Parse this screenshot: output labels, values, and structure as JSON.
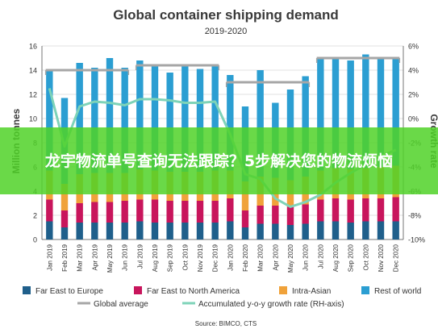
{
  "chart_data": {
    "type": "bar",
    "title": "Global container shipping demand",
    "subtitle": "2019-2020",
    "ylabel": "Million tonnes",
    "y2label": "Growth rate",
    "ylim": [
      0,
      16
    ],
    "y2lim": [
      -10,
      6
    ],
    "yticks": [
      "0",
      "2",
      "4",
      "6",
      "8",
      "10",
      "12",
      "14",
      "16"
    ],
    "y2ticks": [
      "-10%",
      "-8%",
      "-6%",
      "-4%",
      "-2%",
      "0%",
      "2%",
      "4%",
      "6%"
    ],
    "categories": [
      "Jan 2019",
      "Feb 2019",
      "Mar 2019",
      "Apr 2019",
      "May 2019",
      "Jun 2019",
      "Jul 2019",
      "Aug 2019",
      "Sep 2019",
      "Oct 2019",
      "Nov 2019",
      "Dec 2019",
      "Jan 2020",
      "Feb 2020",
      "Mar 2020",
      "Apr 2020",
      "May 2020",
      "Jun 2020",
      "Jul 2020",
      "Aug 2020",
      "Sep 2020",
      "Oct 2020",
      "Nov 2020",
      "Dec 2020"
    ],
    "series": [
      {
        "name": "Far East to Europe",
        "color": "#1f5f8b",
        "values": [
          1.5,
          1.0,
          1.4,
          1.4,
          1.4,
          1.4,
          1.5,
          1.4,
          1.4,
          1.4,
          1.4,
          1.4,
          1.5,
          1.0,
          1.3,
          1.3,
          1.2,
          1.3,
          1.5,
          1.5,
          1.4,
          1.5,
          1.5,
          1.5
        ]
      },
      {
        "name": "Far East to North America",
        "color": "#c8155c",
        "values": [
          1.8,
          1.4,
          1.6,
          1.7,
          1.7,
          1.8,
          1.8,
          1.9,
          1.8,
          1.8,
          1.8,
          1.8,
          1.9,
          1.4,
          1.5,
          1.5,
          1.5,
          1.6,
          1.8,
          1.9,
          1.9,
          1.9,
          1.9,
          2.0
        ]
      },
      {
        "name": "Intra-Asian",
        "color": "#f0a23a",
        "values": [
          2.4,
          2.2,
          2.4,
          2.4,
          2.4,
          2.3,
          2.5,
          2.4,
          2.4,
          2.4,
          2.4,
          2.5,
          2.3,
          2.4,
          2.4,
          2.3,
          2.2,
          2.3,
          2.4,
          2.5,
          2.5,
          2.5,
          2.6,
          2.6
        ]
      },
      {
        "name": "Rest of world",
        "color": "#2b9ed2",
        "values": [
          8.3,
          7.1,
          9.2,
          8.7,
          9.5,
          8.7,
          9.0,
          8.8,
          8.2,
          8.9,
          8.5,
          8.8,
          7.9,
          6.2,
          8.8,
          6.2,
          7.5,
          8.3,
          9.2,
          9.1,
          9.0,
          9.4,
          9.0,
          9.0
        ]
      },
      {
        "name": "Global average",
        "color": "#a6a6a6",
        "type": "step",
        "segments": [
          {
            "from": 0,
            "to": 5,
            "value": 14.0
          },
          {
            "from": 6,
            "to": 11,
            "value": 14.4
          },
          {
            "from": 12,
            "to": 17,
            "value": 13.0
          },
          {
            "from": 18,
            "to": 23,
            "value": 15.0
          }
        ]
      },
      {
        "name": "Accumulated y-o-y growth rate (RH-axis)",
        "color": "#7ed3b8",
        "axis": "right",
        "values": [
          2.5,
          -2.3,
          1.0,
          1.4,
          1.3,
          1.1,
          1.6,
          1.6,
          1.5,
          1.3,
          1.3,
          1.4,
          -1.3,
          -4.6,
          -5.0,
          -6.6,
          -7.3,
          -6.9,
          -6.3,
          -5.3,
          -4.5,
          -3.8,
          -3.1,
          -2.6
        ]
      }
    ],
    "legend_position": "bottom",
    "source": "Source: BIMCO, CTS"
  },
  "overlay_text": "龙宇物流单号查询无法跟踪？5步解决您的物流烦恼",
  "colors": {
    "axis": "#555555",
    "grid": "#d9d9d9",
    "overlay": "#50d228"
  }
}
